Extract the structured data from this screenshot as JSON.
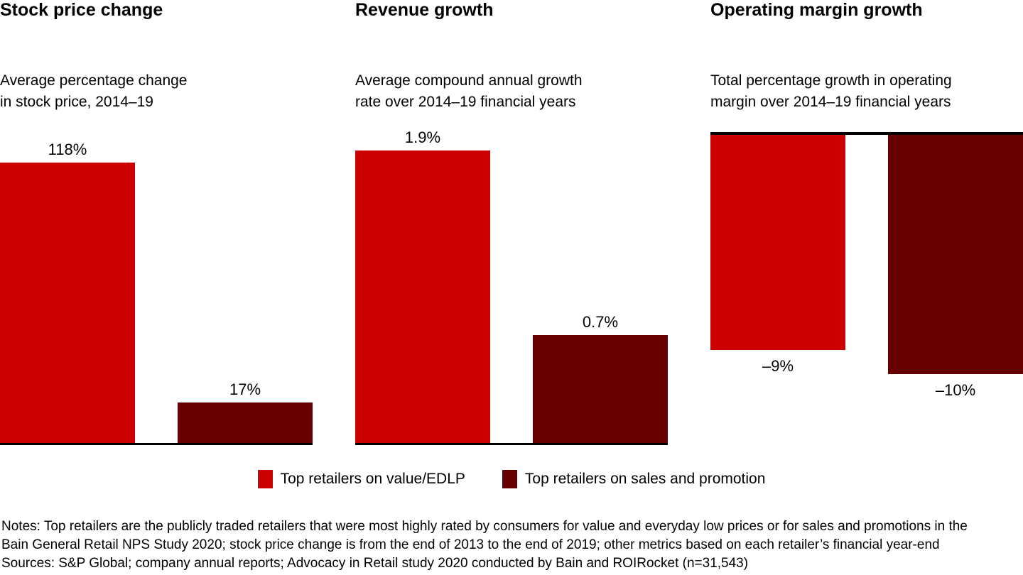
{
  "colors": {
    "value_edlp": "#CC0000",
    "sales_promotion": "#660000",
    "axis": "#000000"
  },
  "panels": [
    {
      "title": "Stock price change",
      "subtitle": "Average percentage change\nin stock price, 2014–19",
      "bars": [
        {
          "series": "value_edlp",
          "value": 118,
          "label": "118%"
        },
        {
          "series": "sales_promotion",
          "value": 17,
          "label": "17%"
        }
      ]
    },
    {
      "title": "Revenue growth",
      "subtitle": "Average compound annual growth\nrate over 2014–19 financial years",
      "bars": [
        {
          "series": "value_edlp",
          "value": 1.9,
          "label": "1.9%"
        },
        {
          "series": "sales_promotion",
          "value": 0.7,
          "label": "0.7%"
        }
      ]
    },
    {
      "title": "Operating margin growth",
      "subtitle": "Total percentage growth in operating\nmargin over 2014–19 financial years",
      "bars": [
        {
          "series": "value_edlp",
          "value": -9,
          "label": "–9%"
        },
        {
          "series": "sales_promotion",
          "value": -10,
          "label": "–10%"
        }
      ]
    }
  ],
  "legend": {
    "items": [
      {
        "series": "value_edlp",
        "label": "Top retailers on value/EDLP"
      },
      {
        "series": "sales_promotion",
        "label": "Top retailers on sales and promotion"
      }
    ]
  },
  "notes": {
    "line1": "Notes: Top retailers are the publicly traded retailers that were most highly rated by consumers for value and everyday low prices or for sales and promotions in the",
    "line2": "Bain General Retail NPS Study 2020; stock price change is from the end of 2013 to the end of 2019; other metrics based on each retailer’s financial year-end",
    "line3": "Sources: S&P Global; company annual reports; Advocacy in Retail study 2020 conducted by Bain and ROIRocket (n=31,543)"
  },
  "chart_data": [
    {
      "type": "bar",
      "title": "Stock price change",
      "subtitle": "Average percentage change in stock price, 2014–19",
      "categories": [
        "Top retailers on value/EDLP",
        "Top retailers on sales and promotion"
      ],
      "values": [
        118,
        17
      ],
      "data_labels": [
        "118%",
        "17%"
      ],
      "unit": "percent",
      "baseline": 0,
      "grid": false,
      "legend_position": "bottom"
    },
    {
      "type": "bar",
      "title": "Revenue growth",
      "subtitle": "Average compound annual growth rate over 2014–19 financial years",
      "categories": [
        "Top retailers on value/EDLP",
        "Top retailers on sales and promotion"
      ],
      "values": [
        1.9,
        0.7
      ],
      "data_labels": [
        "1.9%",
        "0.7%"
      ],
      "unit": "percent",
      "baseline": 0,
      "grid": false,
      "legend_position": "bottom"
    },
    {
      "type": "bar",
      "title": "Operating margin growth",
      "subtitle": "Total percentage growth in operating margin over 2014–19 financial years",
      "categories": [
        "Top retailers on value/EDLP",
        "Top retailers on sales and promotion"
      ],
      "values": [
        -9,
        -10
      ],
      "data_labels": [
        "–9%",
        "–10%"
      ],
      "unit": "percent",
      "baseline": 0,
      "grid": false,
      "legend_position": "bottom"
    }
  ]
}
